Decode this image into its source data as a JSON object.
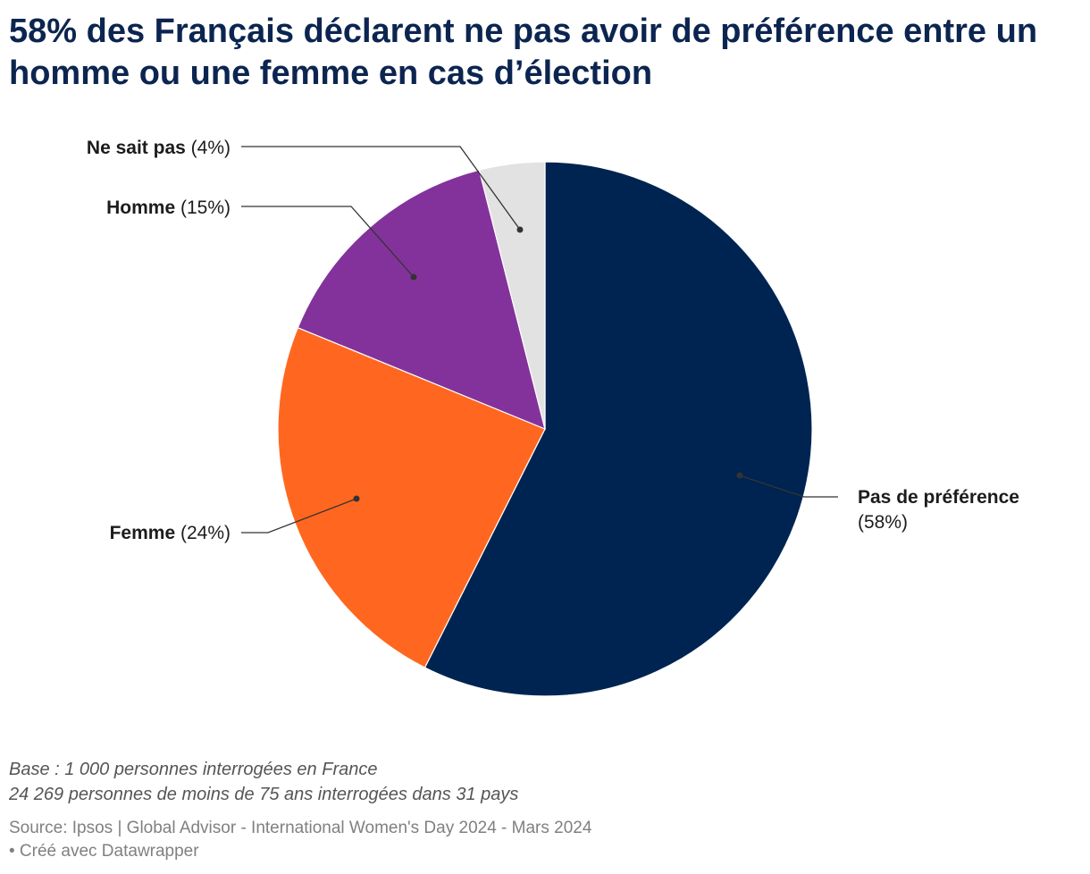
{
  "chart_data": {
    "type": "pie",
    "title": "58% des Français déclarent ne pas avoir de préférence entre un homme ou une femme en cas d’élection",
    "slices": [
      {
        "label": "Pas de préférence",
        "pct_text": "(58%)",
        "value": 58,
        "color": "#002451"
      },
      {
        "label": "Femme",
        "pct_text": "(24%)",
        "value": 24,
        "color": "#ff6720"
      },
      {
        "label": "Homme",
        "pct_text": "(15%)",
        "value": 15,
        "color": "#84329b"
      },
      {
        "label": "Ne sait pas",
        "pct_text": "(4%)",
        "value": 4,
        "color": "#e2e2e2"
      }
    ]
  },
  "notes": {
    "base_line1": "Base : 1 000 personnes interrogées en France",
    "base_line2": "24 269 personnes de moins de 75 ans interrogées dans 31 pays"
  },
  "source": {
    "line1": "Source: Ipsos | Global Advisor - International Women's Day 2024 - Mars 2024",
    "line2": "• Créé avec Datawrapper"
  }
}
